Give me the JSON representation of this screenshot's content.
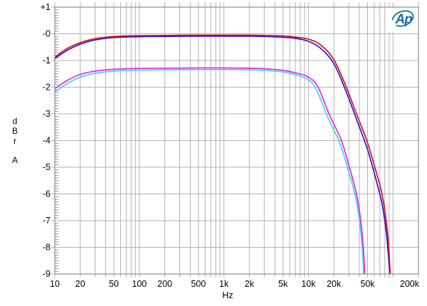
{
  "logo": {
    "text": "Ap",
    "color": "#1b6fa6"
  },
  "axes": {
    "x": {
      "unit": "Hz",
      "scale": "log",
      "min_hz": 10,
      "max_hz": 200000,
      "labeled_ticks": [
        [
          10,
          "10"
        ],
        [
          20,
          "20"
        ],
        [
          50,
          "50"
        ],
        [
          100,
          "100"
        ],
        [
          200,
          "200"
        ],
        [
          500,
          "500"
        ],
        [
          1000,
          "1k"
        ],
        [
          2000,
          "2k"
        ],
        [
          5000,
          "5k"
        ],
        [
          10000,
          "10k"
        ],
        [
          20000,
          "20k"
        ],
        [
          50000,
          "50k"
        ],
        [
          200000,
          "200k"
        ]
      ]
    },
    "y": {
      "unit_letters": [
        "d",
        "B",
        "r",
        "A"
      ],
      "max_db": 1,
      "min_db": -9,
      "major_step": 1,
      "minor_step": 0.1,
      "tick_labels": [
        "+1",
        "-0",
        "-1",
        "-2",
        "-3",
        "-4",
        "-5",
        "-6",
        "-7",
        "-8",
        "-9"
      ]
    }
  },
  "colors": {
    "grid": "#b2b2b2",
    "frame": "#8e8e8e",
    "text": "#000000",
    "logo_blue": "#1b6fa6",
    "series_red": "#d50f1e",
    "series_blue": "#2b14cc",
    "series_magenta": "#dd2ae0",
    "series_cyan": "#4acdf2"
  },
  "chart_data": {
    "type": "line",
    "title": "",
    "xlabel": "Hz",
    "ylabel": "dBr A",
    "x_scale": "log",
    "xlim": [
      10,
      200000
    ],
    "ylim": [
      -9,
      1
    ],
    "grid": "x: every multiple per decade; y: every 1 dB, minor ticks 0.1 dB",
    "legend": "none",
    "series": [
      {
        "name": "lower-pair-cyan",
        "color": "#4acdf2",
        "points": [
          [
            10,
            -2.17
          ],
          [
            14,
            -1.87
          ],
          [
            20,
            -1.62
          ],
          [
            30,
            -1.48
          ],
          [
            50,
            -1.4
          ],
          [
            100,
            -1.36
          ],
          [
            200,
            -1.35
          ],
          [
            500,
            -1.34
          ],
          [
            1000,
            -1.34
          ],
          [
            2000,
            -1.35
          ],
          [
            3000,
            -1.37
          ],
          [
            5000,
            -1.43
          ],
          [
            7000,
            -1.53
          ],
          [
            10000,
            -1.72
          ],
          [
            12500,
            -2.1
          ],
          [
            16800,
            -3.1
          ],
          [
            23500,
            -4.1
          ],
          [
            29500,
            -5.1
          ],
          [
            36000,
            -6.1
          ],
          [
            40500,
            -7.1
          ],
          [
            43500,
            -8.1
          ],
          [
            45800,
            -9.4
          ]
        ]
      },
      {
        "name": "lower-pair-magenta",
        "color": "#dd2ae0",
        "points": [
          [
            10,
            -2.05
          ],
          [
            14,
            -1.75
          ],
          [
            20,
            -1.52
          ],
          [
            30,
            -1.4
          ],
          [
            50,
            -1.33
          ],
          [
            100,
            -1.3
          ],
          [
            200,
            -1.29
          ],
          [
            500,
            -1.28
          ],
          [
            1000,
            -1.28
          ],
          [
            2000,
            -1.29
          ],
          [
            3000,
            -1.31
          ],
          [
            5000,
            -1.37
          ],
          [
            7000,
            -1.46
          ],
          [
            10000,
            -1.62
          ],
          [
            13000,
            -2.0
          ],
          [
            17500,
            -3.0
          ],
          [
            24500,
            -4.0
          ],
          [
            30500,
            -5.0
          ],
          [
            37000,
            -6.0
          ],
          [
            41500,
            -7.0
          ],
          [
            44500,
            -8.0
          ],
          [
            47000,
            -9.4
          ]
        ]
      },
      {
        "name": "upper-pair-blue",
        "color": "#2b14cc",
        "points": [
          [
            10,
            -0.93
          ],
          [
            14,
            -0.62
          ],
          [
            20,
            -0.39
          ],
          [
            30,
            -0.23
          ],
          [
            50,
            -0.14
          ],
          [
            100,
            -0.11
          ],
          [
            200,
            -0.1
          ],
          [
            500,
            -0.09
          ],
          [
            1000,
            -0.09
          ],
          [
            2000,
            -0.09
          ],
          [
            3000,
            -0.1
          ],
          [
            5000,
            -0.13
          ],
          [
            7000,
            -0.17
          ],
          [
            10000,
            -0.28
          ],
          [
            14000,
            -0.55
          ],
          [
            20000,
            -1.12
          ],
          [
            28000,
            -2.18
          ],
          [
            37000,
            -3.2
          ],
          [
            49000,
            -4.25
          ],
          [
            61000,
            -5.3
          ],
          [
            74000,
            -6.35
          ],
          [
            83000,
            -7.4
          ],
          [
            89000,
            -8.45
          ],
          [
            93000,
            -9.4
          ]
        ]
      },
      {
        "name": "upper-pair-red",
        "color": "#d50f1e",
        "points": [
          [
            10,
            -0.87
          ],
          [
            14,
            -0.55
          ],
          [
            20,
            -0.33
          ],
          [
            30,
            -0.18
          ],
          [
            50,
            -0.1
          ],
          [
            100,
            -0.07
          ],
          [
            200,
            -0.06
          ],
          [
            500,
            -0.05
          ],
          [
            1000,
            -0.05
          ],
          [
            2000,
            -0.05
          ],
          [
            3000,
            -0.06
          ],
          [
            5000,
            -0.08
          ],
          [
            7000,
            -0.12
          ],
          [
            10000,
            -0.2
          ],
          [
            14000,
            -0.42
          ],
          [
            20000,
            -0.97
          ],
          [
            28000,
            -2.0
          ],
          [
            37000,
            -3.0
          ],
          [
            49000,
            -4.0
          ],
          [
            61000,
            -5.0
          ],
          [
            74000,
            -6.0
          ],
          [
            83000,
            -7.0
          ],
          [
            89000,
            -8.0
          ],
          [
            94000,
            -9.4
          ]
        ]
      }
    ]
  }
}
